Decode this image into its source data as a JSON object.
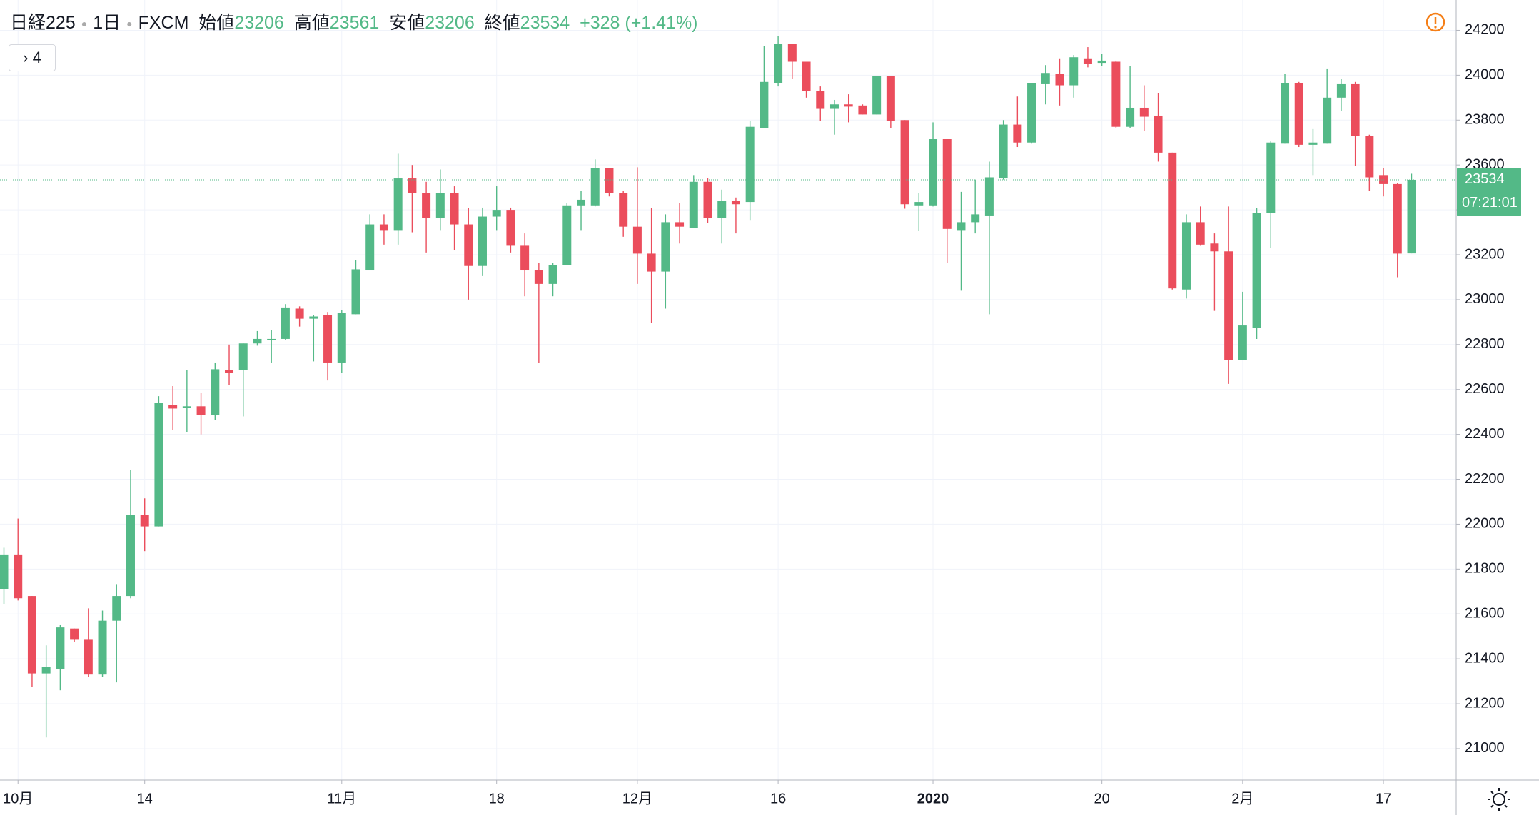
{
  "header": {
    "symbol": "日経225",
    "interval": "1日",
    "source": "FXCM",
    "open_label": "始値",
    "high_label": "高値",
    "low_label": "安値",
    "close_label": "終値",
    "change": "+328",
    "change_pct": "(+1.41%)",
    "indicator_count": "4",
    "countdown": "07:21:01"
  },
  "chart_data": {
    "type": "candlestick",
    "up_color": "#53b987",
    "down_color": "#eb4d5c",
    "categories": [
      null,
      "10月",
      null,
      null,
      null,
      null,
      null,
      null,
      null,
      null,
      "14",
      null,
      null,
      null,
      null,
      null,
      null,
      null,
      null,
      null,
      null,
      null,
      null,
      null,
      "11月",
      null,
      null,
      null,
      null,
      null,
      null,
      null,
      null,
      null,
      null,
      "18",
      null,
      null,
      null,
      null,
      null,
      null,
      null,
      null,
      null,
      "12月",
      null,
      null,
      null,
      null,
      null,
      null,
      null,
      null,
      null,
      "16",
      null,
      null,
      null,
      null,
      null,
      null,
      null,
      null,
      null,
      null,
      "2020",
      null,
      null,
      null,
      null,
      null,
      null,
      null,
      null,
      null,
      null,
      null,
      "20",
      null,
      null,
      null,
      null,
      null,
      null,
      null,
      null,
      null,
      "2月",
      null,
      null,
      null,
      null,
      null,
      null,
      null,
      null,
      null,
      "17",
      null,
      null
    ],
    "open": [
      21710,
      21865,
      21680,
      21335,
      21355,
      21535,
      21485,
      21330,
      21570,
      21680,
      22040,
      21990,
      22530,
      22520,
      22525,
      22485,
      22685,
      22685,
      22805,
      22820,
      22825,
      22960,
      22915,
      22930,
      22720,
      22935,
      23130,
      23335,
      23310,
      23540,
      23475,
      23365,
      23475,
      23335,
      23150,
      23370,
      23400,
      23240,
      23130,
      23070,
      23155,
      23420,
      23420,
      23585,
      23475,
      23325,
      23205,
      23125,
      23345,
      23320,
      23525,
      23365,
      23440,
      23435,
      23765,
      23965,
      24140,
      24060,
      23930,
      23850,
      23870,
      23865,
      23825,
      23995,
      23800,
      23420,
      23420,
      23715,
      23310,
      23345,
      23375,
      23540,
      23780,
      23700,
      23960,
      24005,
      23955,
      24075,
      24055,
      24060,
      23770,
      23855,
      23820,
      23655,
      23045,
      23345,
      23250,
      23215,
      22730,
      22875,
      23385,
      23695,
      23965,
      23690,
      23695,
      23900,
      23960,
      23730,
      23555,
      23515,
      23206
    ],
    "high": [
      21895,
      22025,
      21680,
      21460,
      21550,
      21535,
      21625,
      21615,
      21730,
      22240,
      22115,
      22570,
      22615,
      22685,
      22585,
      22720,
      22800,
      22805,
      22860,
      22865,
      22980,
      22970,
      22930,
      22945,
      22955,
      23175,
      23380,
      23380,
      23650,
      23600,
      23525,
      23580,
      23505,
      23410,
      23410,
      23505,
      23410,
      23295,
      23165,
      23165,
      23430,
      23485,
      23625,
      23585,
      23485,
      23590,
      23410,
      23380,
      23430,
      23555,
      23540,
      23490,
      23455,
      23795,
      24130,
      24175,
      24140,
      24060,
      23950,
      23890,
      23915,
      23870,
      23995,
      23995,
      23800,
      23475,
      23790,
      23715,
      23480,
      23535,
      23615,
      23800,
      23905,
      23965,
      24045,
      24075,
      24090,
      24125,
      24095,
      24065,
      24040,
      23955,
      23920,
      23655,
      23380,
      23415,
      23295,
      23415,
      23035,
      23410,
      23705,
      24005,
      23970,
      23760,
      24030,
      23985,
      23970,
      23735,
      23585,
      23520,
      23561
    ],
    "low": [
      21645,
      21660,
      21275,
      21050,
      21260,
      21475,
      21320,
      21320,
      21295,
      21670,
      21880,
      21990,
      22420,
      22410,
      22400,
      22465,
      22620,
      22480,
      22795,
      22720,
      22820,
      22880,
      22725,
      22640,
      22675,
      22935,
      23130,
      23245,
      23245,
      23300,
      23210,
      23310,
      23220,
      23000,
      23105,
      23310,
      23210,
      23015,
      22720,
      23015,
      23155,
      23310,
      23415,
      23460,
      23280,
      23070,
      22895,
      22960,
      23250,
      23320,
      23340,
      23250,
      23295,
      23355,
      23765,
      23950,
      23985,
      23900,
      23795,
      23735,
      23790,
      23825,
      23825,
      23765,
      23405,
      23305,
      23415,
      23165,
      23040,
      23295,
      22935,
      23535,
      23680,
      23695,
      23870,
      23865,
      23900,
      24035,
      24040,
      23765,
      23765,
      23750,
      23615,
      23045,
      23005,
      23240,
      22950,
      22625,
      22730,
      22825,
      23230,
      23695,
      23680,
      23555,
      23695,
      23840,
      23595,
      23485,
      23460,
      23100,
      23206
    ],
    "close": [
      21865,
      21670,
      21335,
      21365,
      21540,
      21485,
      21330,
      21570,
      21680,
      22040,
      21990,
      22540,
      22515,
      22525,
      22485,
      22690,
      22675,
      22805,
      22825,
      22825,
      22965,
      22915,
      22925,
      22720,
      22940,
      23135,
      23335,
      23310,
      23540,
      23475,
      23365,
      23475,
      23335,
      23150,
      23370,
      23400,
      23240,
      23130,
      23070,
      23155,
      23420,
      23445,
      23585,
      23475,
      23325,
      23205,
      23125,
      23345,
      23325,
      23525,
      23365,
      23440,
      23425,
      23770,
      23970,
      24140,
      24060,
      23930,
      23850,
      23870,
      23860,
      23825,
      23995,
      23795,
      23425,
      23435,
      23715,
      23315,
      23345,
      23380,
      23545,
      23780,
      23700,
      23965,
      24010,
      23955,
      24080,
      24050,
      24065,
      23770,
      23855,
      23815,
      23655,
      23050,
      23345,
      23245,
      23215,
      22730,
      22885,
      23385,
      23700,
      23965,
      23690,
      23700,
      23900,
      23960,
      23730,
      23545,
      23515,
      23205,
      23534
    ],
    "ylim": [
      20860,
      24335
    ],
    "yticks": [
      21000,
      21200,
      21400,
      21600,
      21800,
      22000,
      22200,
      22400,
      22600,
      22800,
      23000,
      23200,
      23400,
      23600,
      23800,
      24000,
      24200
    ],
    "grid": true
  }
}
